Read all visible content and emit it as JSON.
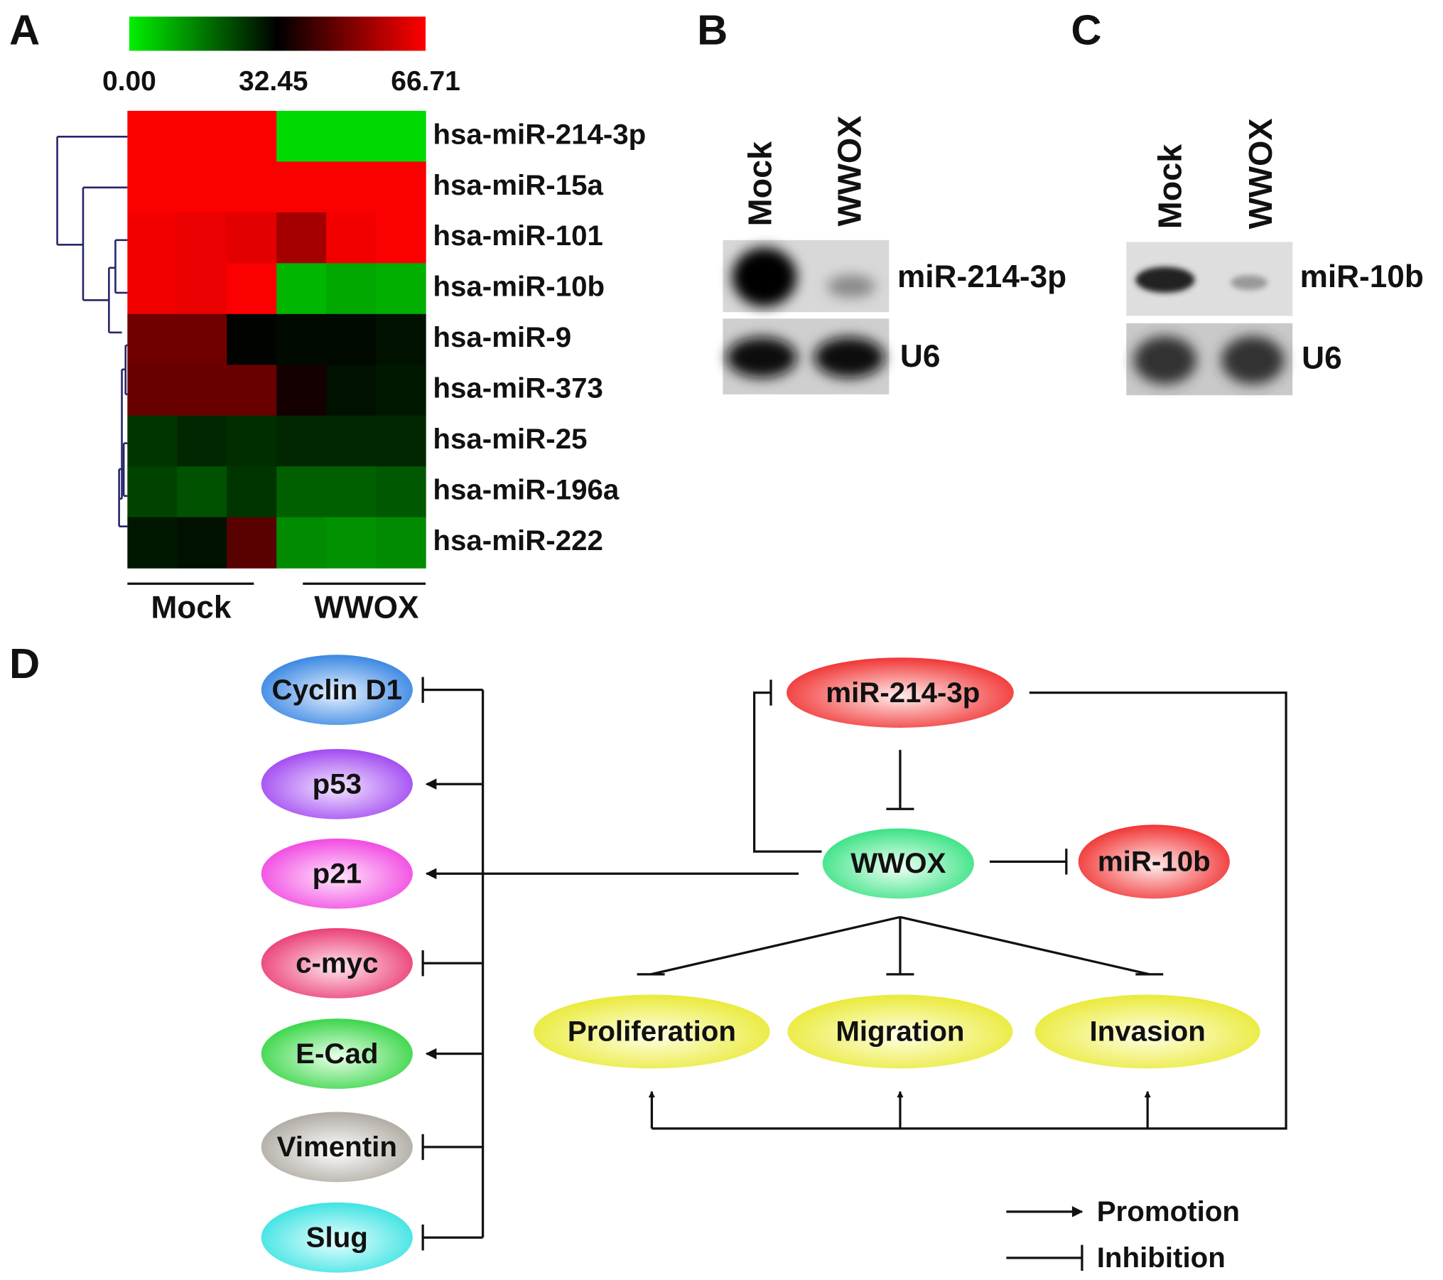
{
  "panels": {
    "a": "A",
    "b": "B",
    "c": "C",
    "d": "D"
  },
  "chart_data": {
    "type": "heatmap",
    "rows": [
      "hsa-miR-214-3p",
      "hsa-miR-15a",
      "hsa-miR-101",
      "hsa-miR-10b",
      "hsa-miR-9",
      "hsa-miR-373",
      "hsa-miR-25",
      "hsa-miR-196a",
      "hsa-miR-222"
    ],
    "groups": [
      "Mock",
      "WWOX"
    ],
    "values": [
      [
        66,
        66,
        66,
        3,
        3,
        3
      ],
      [
        66,
        66,
        66,
        66,
        66,
        66
      ],
      [
        65,
        64,
        63,
        55,
        65,
        66
      ],
      [
        65,
        64,
        66,
        8,
        10,
        9
      ],
      [
        48,
        48,
        33,
        32,
        32,
        31
      ],
      [
        47,
        47,
        47,
        36,
        31,
        30
      ],
      [
        26,
        28,
        27,
        28,
        28,
        28
      ],
      [
        24,
        22,
        26,
        20,
        20,
        21
      ],
      [
        30,
        31,
        45,
        14,
        13,
        14
      ]
    ],
    "zlim": [
      0,
      66.71
    ],
    "zticks": [
      {
        "value": 0,
        "label": "0.00"
      },
      32.45,
      66.71
    ],
    "colors": [
      "#00f000",
      "#000000",
      "#ff0000"
    ]
  },
  "blot_b": {
    "lanes": [
      "Mock",
      "WWOX"
    ],
    "bands": [
      "miR-214-3p",
      "U6"
    ]
  },
  "blot_c": {
    "lanes": [
      "Mock",
      "WWOX"
    ],
    "bands": [
      "miR-10b",
      "U6"
    ]
  },
  "diagram": {
    "targets": [
      "Cyclin D1",
      "p53",
      "p21",
      "c-myc",
      "E-Cad",
      "Vimentin",
      "Slug"
    ],
    "mir214": "miR-214-3p",
    "wwox": "WWOX",
    "mir10b": "miR-10b",
    "phenotypes": [
      "Proliferation",
      "Migration",
      "Invasion"
    ],
    "legend": [
      "Promotion",
      "Inhibition"
    ]
  }
}
